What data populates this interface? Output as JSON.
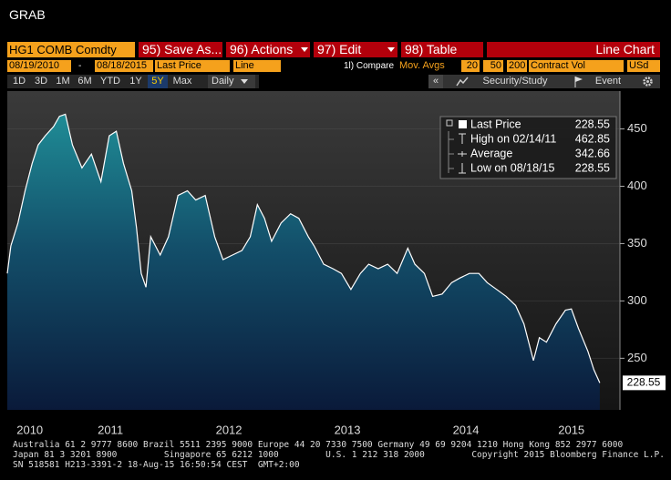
{
  "window": {
    "title": "GRAB"
  },
  "toolbar": {
    "security": "HG1 COMB Comdty",
    "save_as": "95) Save As...",
    "actions": "96) Actions",
    "edit": "97) Edit",
    "table": "98) Table",
    "view": "Line Chart"
  },
  "settings": {
    "start_date": "08/19/2010",
    "dash": "-",
    "end_date": "08/18/2015",
    "field": "Last Price",
    "style": "Line",
    "compare": "1l) Compare",
    "mov_avgs": "Mov. Avgs",
    "ma": [
      "20",
      "50",
      "200"
    ],
    "lower": "Contract Vol",
    "currency": "USd"
  },
  "periods": {
    "buttons": [
      "1D",
      "3D",
      "1M",
      "6M",
      "YTD",
      "1Y",
      "5Y",
      "Max"
    ],
    "frequency": "Daily",
    "collapse": "«",
    "study": "Security/Study",
    "event": "Event"
  },
  "chart_data": {
    "type": "area",
    "x": [
      2010.63,
      2010.66,
      2010.72,
      2010.78,
      2010.84,
      2010.89,
      2010.95,
      2011.02,
      2011.07,
      2011.12,
      2011.18,
      2011.26,
      2011.34,
      2011.42,
      2011.49,
      2011.55,
      2011.61,
      2011.68,
      2011.72,
      2011.76,
      2011.8,
      2011.84,
      2011.92,
      2011.99,
      2012.07,
      2012.15,
      2012.22,
      2012.3,
      2012.38,
      2012.45,
      2012.53,
      2012.61,
      2012.68,
      2012.74,
      2012.8,
      2012.86,
      2012.94,
      2013.02,
      2013.09,
      2013.17,
      2013.22,
      2013.3,
      2013.38,
      2013.45,
      2013.53,
      2013.61,
      2013.68,
      2013.76,
      2013.84,
      2013.92,
      2014.01,
      2014.07,
      2014.15,
      2014.22,
      2014.3,
      2014.38,
      2014.45,
      2014.53,
      2014.61,
      2014.68,
      2014.76,
      2014.84,
      2014.92,
      2014.99,
      2015.07,
      2015.12,
      2015.18,
      2015.26,
      2015.34,
      2015.39,
      2015.45,
      2015.53,
      2015.58,
      2015.63
    ],
    "series": [
      {
        "name": "Last Price",
        "color": "#ffffff",
        "values": [
          324,
          348,
          368,
          396,
          420,
          436,
          444,
          452,
          461,
          462.85,
          436,
          416,
          428,
          404,
          444,
          448,
          420,
          396,
          364,
          324,
          312,
          356,
          340,
          356,
          392,
          396,
          388,
          392,
          356,
          336,
          340,
          344,
          356,
          384,
          372,
          352,
          368,
          376,
          372,
          356,
          348,
          332,
          328,
          324,
          310,
          324,
          332,
          328,
          332,
          324,
          346,
          332,
          324,
          304,
          306,
          316,
          320,
          324,
          324,
          316,
          310,
          304,
          296,
          280,
          248,
          268,
          264,
          280,
          292,
          293,
          276,
          256,
          240,
          228.55
        ]
      }
    ],
    "xlim": [
      2010.63,
      2015.8
    ],
    "xticks": [
      {
        "value": 2010.82,
        "label": "2010"
      },
      {
        "value": 2011.5,
        "label": "2011"
      },
      {
        "value": 2012.5,
        "label": "2012"
      },
      {
        "value": 2013.5,
        "label": "2013"
      },
      {
        "value": 2014.5,
        "label": "2014"
      },
      {
        "value": 2015.39,
        "label": "2015"
      }
    ],
    "ylim": [
      205,
      483
    ],
    "yticks": [
      250,
      300,
      350,
      400,
      450
    ],
    "grid": true,
    "legend_stats": [
      {
        "label": "Last Price",
        "value": 228.55
      },
      {
        "label": "High on 02/14/11",
        "value": 462.85
      },
      {
        "label": "Average",
        "value": 342.66
      },
      {
        "label": "Low on 08/18/15",
        "value": 228.55
      }
    ]
  },
  "footer": [
    "Australia 61 2 9777 8600 Brazil 5511 2395 9000 Europe 44 20 7330 7500 Germany 49 69 9204 1210 Hong Kong 852 2977 6000",
    "Japan 81 3 3201 8900         Singapore 65 6212 1000         U.S. 1 212 318 2000         Copyright 2015 Bloomberg Finance L.P.",
    "SN 518581 H213-3391-2 18-Aug-15 16:50:54 CEST  GMT+2:00"
  ]
}
